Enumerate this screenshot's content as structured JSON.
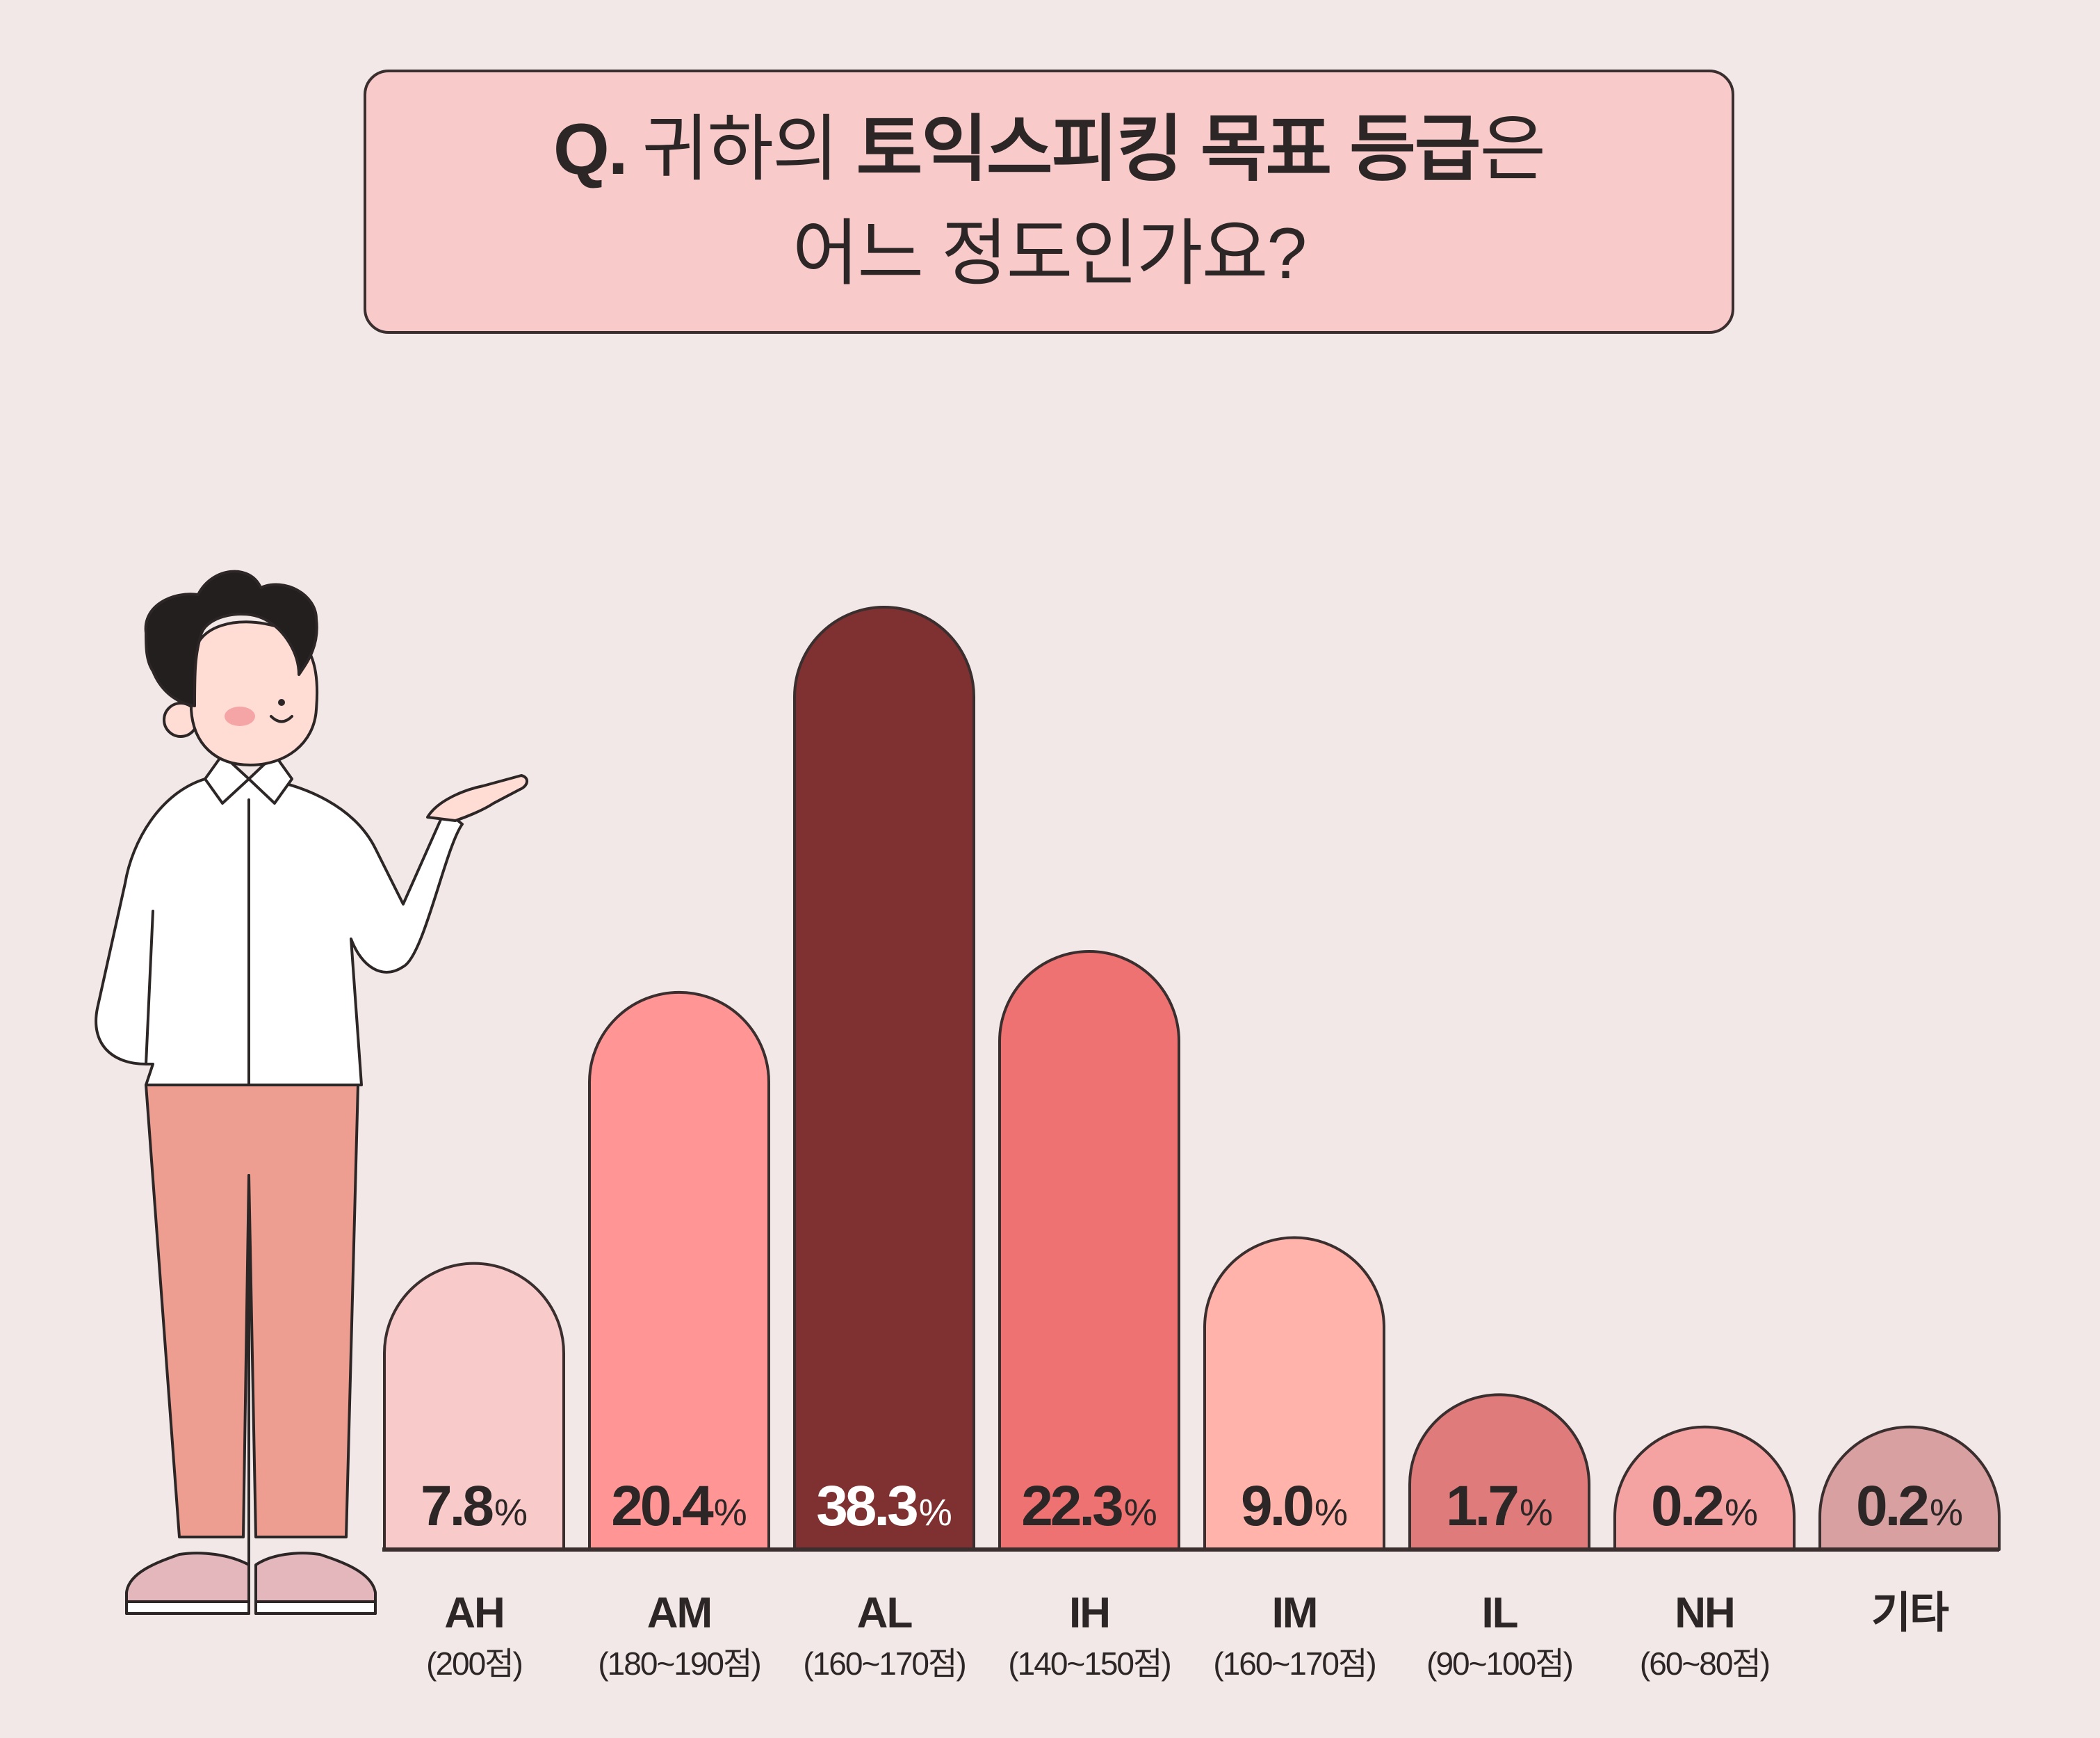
{
  "question": {
    "mark": "Q.",
    "line1_light": "귀하의",
    "line1_bold": "토익스피킹 목표 등급",
    "line1_suffix": "은",
    "line2": "어느 정도인가요?"
  },
  "chart_data": {
    "type": "bar",
    "categories": [
      "AH",
      "AM",
      "AL",
      "IH",
      "IM",
      "IL",
      "NH",
      "기타"
    ],
    "sublabels": [
      "(200점)",
      "(180~190점)",
      "(160~170점)",
      "(140~150점)",
      "(160~170점)",
      "(90~100점)",
      "(60~80점)",
      ""
    ],
    "values": [
      7.8,
      20.4,
      38.3,
      22.3,
      9.0,
      1.7,
      0.2,
      0.2
    ],
    "value_labels": [
      "7.8",
      "20.4",
      "38.3",
      "22.3",
      "9.0",
      "1.7",
      "0.2",
      "0.2"
    ],
    "unit": "%",
    "colors": [
      "#F8CACA",
      "#FF9595",
      "#7F3030",
      "#EE7272",
      "#FFB3AA",
      "#E07B7B",
      "#F4A2A2",
      "#D8A0A0"
    ],
    "highlight_label_color": "#FFFFFF",
    "label_color": "#2D2626",
    "outline_color": "#3A2E2E",
    "title": "",
    "xlabel": "",
    "ylabel": "",
    "grid": false,
    "legend": false
  }
}
